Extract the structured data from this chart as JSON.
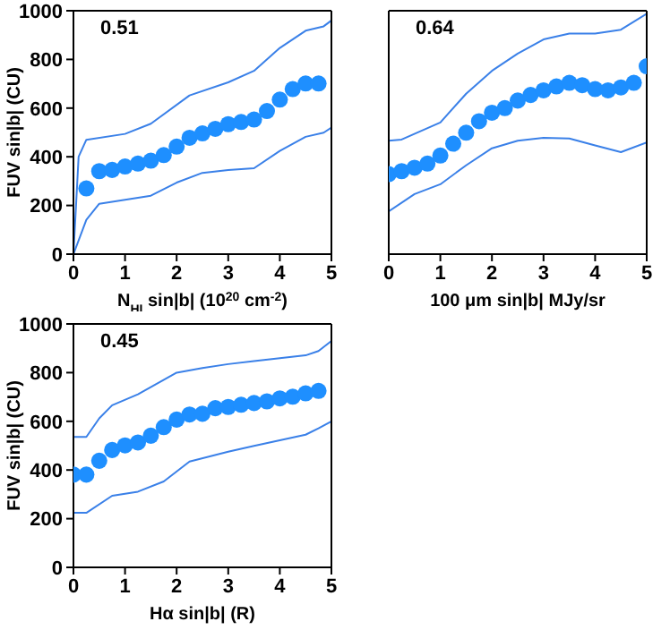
{
  "chart_data": [
    {
      "type": "scatter",
      "xlabel": "N$_{HI}$ sin|b| (10$^{20}$ cm$^{-2}$)",
      "ylabel": "FUV sin|b| (CU)",
      "annotations": [
        "0.51"
      ],
      "xlim": [
        0,
        5
      ],
      "ylim": [
        0,
        1000
      ],
      "xticks": [
        0,
        1,
        2,
        3,
        4,
        5
      ],
      "yticks": [
        0,
        200,
        400,
        600,
        800,
        1000
      ],
      "series": [
        {
          "type": "scatter",
          "color": "#1e8fff",
          "marker": "circle",
          "x": [
            0.25,
            0.5,
            0.75,
            1,
            1.25,
            1.5,
            1.75,
            2,
            2.25,
            2.5,
            2.75,
            3,
            3.25,
            3.5,
            3.75,
            4,
            4.25,
            4.5,
            4.75
          ],
          "values": [
            270,
            341,
            346,
            360,
            372,
            384,
            407,
            442,
            478,
            496,
            515,
            534,
            543,
            553,
            588,
            635,
            678,
            701,
            701
          ]
        },
        {
          "type": "line",
          "color": "#3a80e8",
          "marker": "none",
          "x": [
            0,
            0.1,
            0.25,
            1,
            1.5,
            2.25,
            3,
            3.5,
            4,
            4.5,
            4.85,
            5
          ],
          "values": [
            0,
            400,
            470,
            494,
            536,
            652,
            706,
            753,
            847,
            918,
            936,
            960
          ]
        },
        {
          "type": "line",
          "color": "#3a80e8",
          "marker": "none",
          "x": [
            0,
            0.25,
            0.5,
            1.5,
            2,
            2.5,
            3,
            3.5,
            4,
            4.5,
            4.85,
            5
          ],
          "values": [
            0,
            141,
            207,
            240,
            294,
            334,
            346,
            353,
            424,
            482,
            499,
            520
          ]
        }
      ]
    },
    {
      "type": "scatter",
      "xlabel": "100 μm sin|b| MJy/sr",
      "annotations": [
        "0.64"
      ],
      "tick_labels": "x",
      "xlim": [
        0,
        5
      ],
      "ylim": [
        0,
        1000
      ],
      "xticks": [
        0,
        1,
        2,
        3,
        4,
        5
      ],
      "yticks": [
        0,
        200,
        400,
        600,
        800,
        1000
      ],
      "series": [
        {
          "type": "scatter",
          "color": "#1e8fff",
          "marker": "circle",
          "x": [
            0,
            0.25,
            0.5,
            0.75,
            1,
            1.25,
            1.5,
            1.75,
            2,
            2.25,
            2.5,
            2.75,
            3,
            3.25,
            3.5,
            3.75,
            4,
            4.25,
            4.5,
            4.75,
            5
          ],
          "values": [
            329,
            341,
            355,
            372,
            405,
            454,
            499,
            546,
            581,
            600,
            631,
            654,
            673,
            689,
            704,
            694,
            678,
            673,
            685,
            704,
            772
          ]
        },
        {
          "type": "line",
          "color": "#3a80e8",
          "marker": "none",
          "x": [
            0,
            0.25,
            1,
            1.5,
            2,
            2.5,
            3,
            3.5,
            4,
            4.5,
            5
          ],
          "values": [
            466,
            471,
            541,
            659,
            753,
            824,
            882,
            906,
            906,
            922,
            988
          ]
        },
        {
          "type": "line",
          "color": "#3a80e8",
          "marker": "none",
          "x": [
            0,
            0.5,
            1,
            1.5,
            2,
            2.5,
            3,
            3.5,
            4,
            4.5,
            5
          ],
          "values": [
            176,
            247,
            287,
            365,
            435,
            466,
            478,
            475,
            447,
            419,
            459
          ]
        }
      ]
    },
    {
      "type": "scatter",
      "xlabel": "Hα sin|b| (R)",
      "ylabel": "FUV sin|b| (CU)",
      "annotations": [
        "0.45"
      ],
      "xlim": [
        0,
        5
      ],
      "ylim": [
        0,
        1000
      ],
      "xticks": [
        0,
        1,
        2,
        3,
        4,
        5
      ],
      "yticks": [
        0,
        200,
        400,
        600,
        800,
        1000
      ],
      "series": [
        {
          "type": "scatter",
          "color": "#1e8fff",
          "marker": "circle",
          "x": [
            0,
            0.25,
            0.5,
            0.75,
            1,
            1.25,
            1.5,
            1.75,
            2,
            2.25,
            2.5,
            2.75,
            3,
            3.25,
            3.5,
            3.75,
            4,
            4.25,
            4.5,
            4.75
          ],
          "values": [
            381,
            381,
            438,
            482,
            501,
            513,
            541,
            576,
            607,
            628,
            631,
            654,
            659,
            668,
            675,
            682,
            694,
            701,
            715,
            725
          ]
        },
        {
          "type": "line",
          "color": "#3a80e8",
          "marker": "none",
          "x": [
            0,
            0.25,
            0.5,
            0.75,
            1.25,
            2,
            2.5,
            3,
            3.5,
            4,
            4.5,
            4.75,
            5
          ],
          "values": [
            536,
            536,
            612,
            666,
            711,
            800,
            819,
            835,
            847,
            859,
            871,
            889,
            930
          ]
        },
        {
          "type": "line",
          "color": "#3a80e8",
          "marker": "none",
          "x": [
            0,
            0.25,
            0.75,
            1.25,
            1.75,
            2.25,
            3,
            3.5,
            4,
            4.5,
            4.75,
            5
          ],
          "values": [
            224,
            224,
            294,
            311,
            353,
            435,
            475,
            499,
            522,
            545,
            571,
            600
          ]
        }
      ]
    }
  ]
}
